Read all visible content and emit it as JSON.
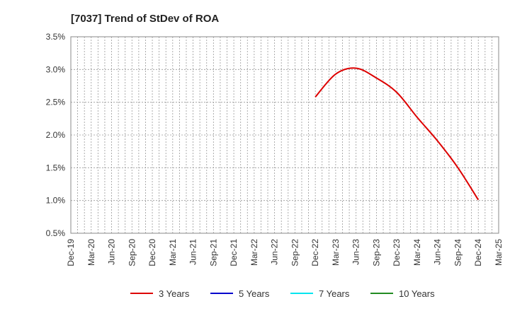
{
  "chart_data": {
    "type": "line",
    "title": "[7037]  Trend of StDev of ROA",
    "xlabel": "",
    "ylabel": "",
    "ylim": [
      0.5,
      3.5
    ],
    "y_ticks": [
      "0.5%",
      "1.0%",
      "1.5%",
      "2.0%",
      "2.5%",
      "3.0%",
      "3.5%"
    ],
    "y_tick_values": [
      0.5,
      1.0,
      1.5,
      2.0,
      2.5,
      3.0,
      3.5
    ],
    "x_ticks": [
      "Dec-19",
      "Mar-20",
      "Jun-20",
      "Sep-20",
      "Dec-20",
      "Mar-21",
      "Jun-21",
      "Sep-21",
      "Dec-21",
      "Mar-22",
      "Jun-22",
      "Sep-22",
      "Dec-22",
      "Mar-23",
      "Jun-23",
      "Sep-23",
      "Dec-23",
      "Mar-24",
      "Jun-24",
      "Sep-24",
      "Dec-24",
      "Mar-25"
    ],
    "grid": true,
    "legend_position": "bottom",
    "series": [
      {
        "name": "3 Years",
        "color": "#dd0000",
        "x": [
          "Dec-22",
          "Mar-23",
          "Jun-23",
          "Sep-23",
          "Dec-23",
          "Mar-24",
          "Jun-24",
          "Sep-24",
          "Dec-24"
        ],
        "values": [
          2.58,
          2.93,
          3.02,
          2.87,
          2.65,
          2.27,
          1.91,
          1.5,
          1.01
        ]
      },
      {
        "name": "5 Years",
        "color": "#0000cc",
        "x": [],
        "values": []
      },
      {
        "name": "7 Years",
        "color": "#00e5ee",
        "x": [],
        "values": []
      },
      {
        "name": "10 Years",
        "color": "#228b22",
        "x": [],
        "values": []
      }
    ]
  }
}
